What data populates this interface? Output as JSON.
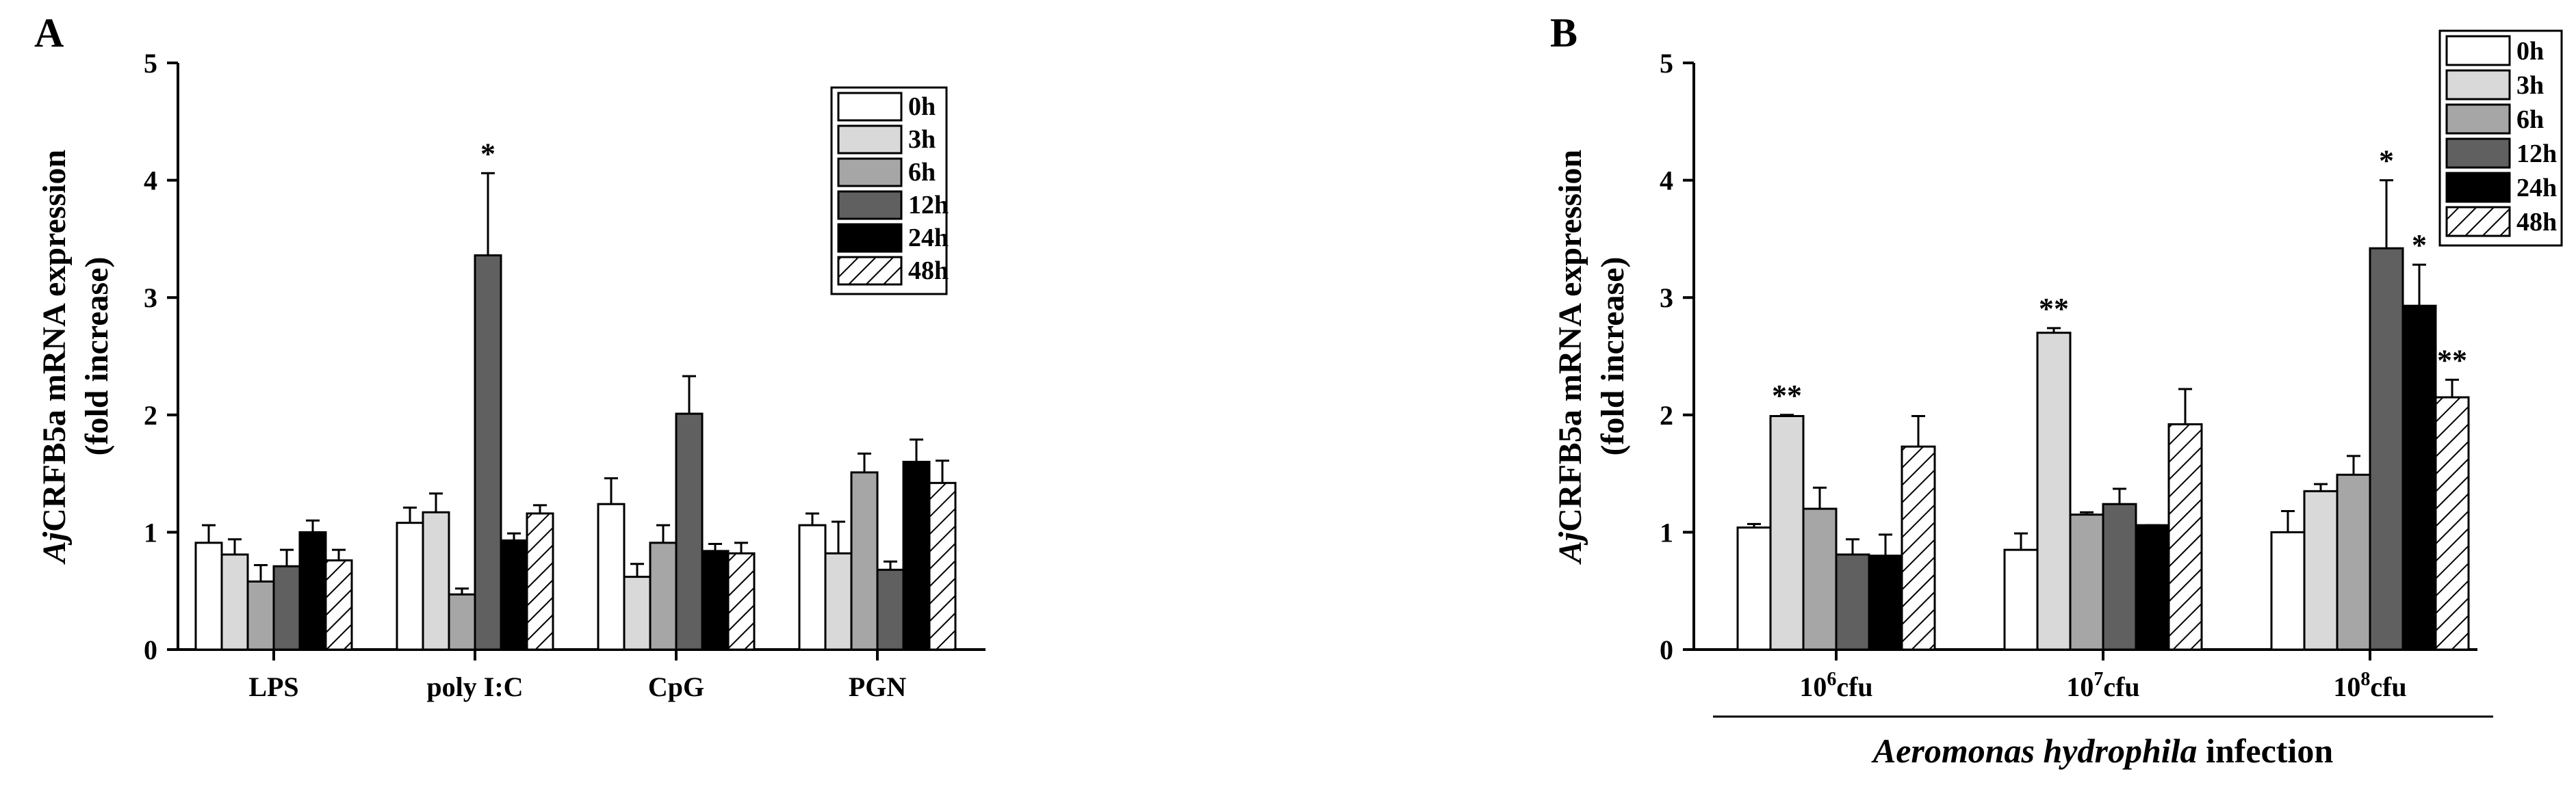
{
  "chart_data": [
    {
      "type": "bar",
      "panel_letter": "A",
      "ylabel_italic": "Aj",
      "ylabel_rest": "CRFB5a mRNA expression",
      "ylabel_line2": "(fold increase)",
      "xlabel": "",
      "ylim": [
        0,
        5
      ],
      "yticks": [
        "0",
        "1",
        "2",
        "3",
        "4",
        "5"
      ],
      "grid": false,
      "legend_position": "top-right",
      "categories": [
        "LPS",
        "poly I:C",
        "CpG",
        "PGN"
      ],
      "series": [
        {
          "name": "0h",
          "style": "white",
          "values": [
            0.91,
            1.08,
            1.24,
            1.06
          ],
          "errors": [
            0.15,
            0.13,
            0.22,
            0.1
          ]
        },
        {
          "name": "3h",
          "style": "light",
          "values": [
            0.81,
            1.17,
            0.62,
            0.82
          ],
          "errors": [
            0.13,
            0.16,
            0.11,
            0.27
          ]
        },
        {
          "name": "6h",
          "style": "mid",
          "values": [
            0.58,
            0.47,
            0.91,
            1.51
          ],
          "errors": [
            0.14,
            0.05,
            0.15,
            0.16
          ]
        },
        {
          "name": "12h",
          "style": "dark",
          "values": [
            0.71,
            3.36,
            2.01,
            0.68
          ],
          "errors": [
            0.14,
            0.7,
            0.32,
            0.07
          ]
        },
        {
          "name": "24h",
          "style": "black",
          "values": [
            1.0,
            0.93,
            0.84,
            1.6
          ],
          "errors": [
            0.1,
            0.06,
            0.06,
            0.19
          ]
        },
        {
          "name": "48h",
          "style": "hatched",
          "values": [
            0.76,
            1.16,
            0.82,
            1.42
          ],
          "errors": [
            0.09,
            0.07,
            0.09,
            0.19
          ]
        }
      ],
      "annotations": [
        {
          "category": "poly I:C",
          "series": "12h",
          "text": "*"
        }
      ]
    },
    {
      "type": "bar",
      "panel_letter": "B",
      "ylabel_italic": "Aj",
      "ylabel_rest": "CRFB5a mRNA expression",
      "ylabel_line2": "(fold increase)",
      "xlabel_italic": "Aeromonas hydrophila",
      "xlabel_rest": " infection",
      "ylim": [
        0,
        5
      ],
      "yticks": [
        "0",
        "1",
        "2",
        "3",
        "4",
        "5"
      ],
      "grid": false,
      "legend_position": "top-right",
      "categories": [
        {
          "base": "10",
          "exp": "6",
          "unit": "cfu"
        },
        {
          "base": "10",
          "exp": "7",
          "unit": "cfu"
        },
        {
          "base": "10",
          "exp": "8",
          "unit": "cfu"
        }
      ],
      "series": [
        {
          "name": "0h",
          "style": "white",
          "values": [
            1.04,
            0.85,
            1.0
          ],
          "errors": [
            0.03,
            0.14,
            0.18
          ]
        },
        {
          "name": "3h",
          "style": "light",
          "values": [
            1.99,
            2.7,
            1.35
          ],
          "errors": [
            0.01,
            0.04,
            0.06
          ]
        },
        {
          "name": "6h",
          "style": "mid",
          "values": [
            1.2,
            1.15,
            1.49
          ],
          "errors": [
            0.18,
            0.02,
            0.16
          ]
        },
        {
          "name": "12h",
          "style": "dark",
          "values": [
            0.81,
            1.24,
            3.42
          ],
          "errors": [
            0.13,
            0.13,
            0.58
          ]
        },
        {
          "name": "24h",
          "style": "black",
          "values": [
            0.8,
            1.06,
            2.93
          ],
          "errors": [
            0.18,
            0.0,
            0.35
          ]
        },
        {
          "name": "48h",
          "style": "hatched",
          "values": [
            1.73,
            1.92,
            2.15
          ],
          "errors": [
            0.26,
            0.3,
            0.15
          ]
        }
      ],
      "annotations": [
        {
          "category": 0,
          "series": "3h",
          "text": "**"
        },
        {
          "category": 1,
          "series": "3h",
          "text": "**"
        },
        {
          "category": 2,
          "series": "12h",
          "text": "*"
        },
        {
          "category": 2,
          "series": "24h",
          "text": "*"
        },
        {
          "category": 2,
          "series": "48h",
          "text": "**"
        }
      ]
    }
  ],
  "colors": {
    "white": "#ffffff",
    "light": "#d9d9d9",
    "mid": "#a6a6a6",
    "dark": "#606060",
    "black": "#000000",
    "hatched": "#ffffff",
    "stroke": "#000000"
  }
}
